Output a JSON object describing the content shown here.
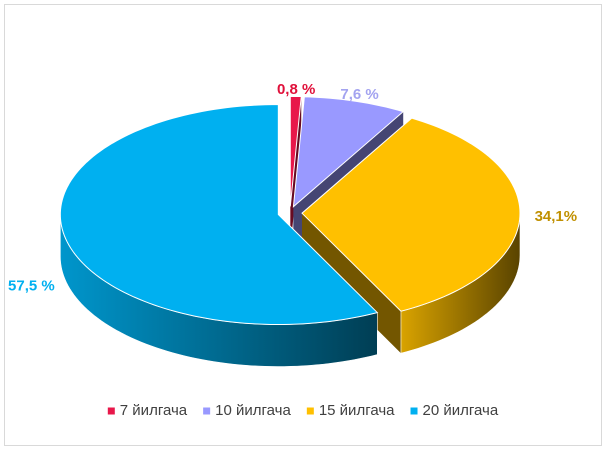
{
  "chart_data": {
    "type": "pie",
    "categories": [
      "7 йилгача",
      "10 йилгача",
      "15 йилгача",
      "20 йилгача"
    ],
    "values": [
      0.8,
      7.6,
      34.1,
      57.5
    ],
    "value_labels": [
      "0,8 %",
      "7,6 %",
      "34,1%",
      "57,5 %"
    ],
    "colors": [
      "#e8174a",
      "#9999ff",
      "#ffc000",
      "#00b0f0"
    ],
    "label_colors": [
      "#e0103a",
      "#a3a3f0",
      "#c09000",
      "#00b0f0"
    ],
    "legend": "bottom"
  }
}
